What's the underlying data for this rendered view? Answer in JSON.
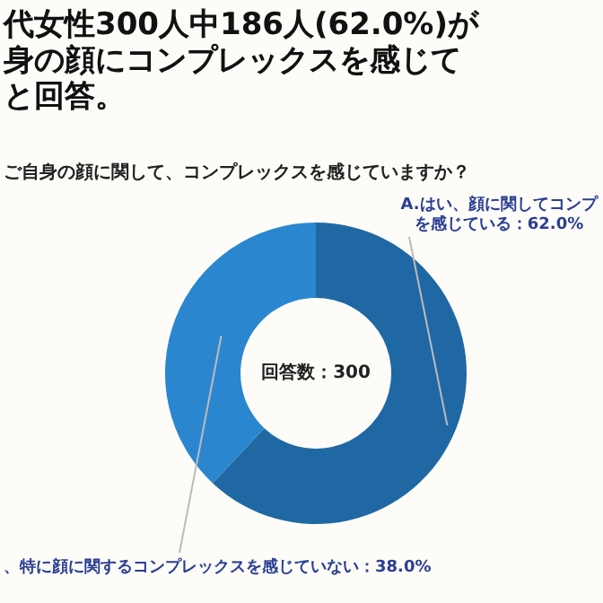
{
  "chart_data": {
    "type": "donut",
    "title": "代女性300人中186人(62.0%)が身の顔にコンプレックスを感じてと回答。",
    "subtitle": "ご自身の顔に関して、コンプレックスを感じていますか？",
    "categories": [
      "A.はい、顔に関してコンプを感じている：62.0%",
      "、特に顔に関するコンプレックスを感じていない：38.0%"
    ],
    "values": [
      62,
      38
    ],
    "colors": [
      "#1f68a3",
      "#2a86cf"
    ],
    "annotations": [
      "回答数：300"
    ],
    "legend": false
  }
}
